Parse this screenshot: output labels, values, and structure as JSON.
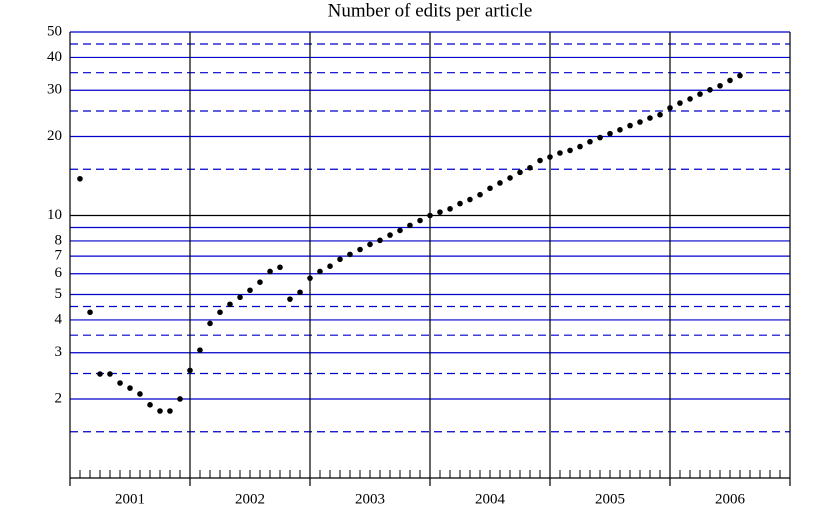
{
  "chart_data": {
    "type": "scatter",
    "title": "Number of edits per article",
    "x": [
      2001.083,
      2001.167,
      2001.25,
      2001.333,
      2001.417,
      2001.5,
      2001.583,
      2001.667,
      2001.75,
      2001.833,
      2001.917,
      2002,
      2002.083,
      2002.167,
      2002.25,
      2002.333,
      2002.417,
      2002.5,
      2002.583,
      2002.667,
      2002.75,
      2002.833,
      2002.917,
      2003,
      2003.083,
      2003.167,
      2003.25,
      2003.333,
      2003.417,
      2003.5,
      2003.583,
      2003.667,
      2003.75,
      2003.833,
      2003.917,
      2004,
      2004.083,
      2004.167,
      2004.25,
      2004.333,
      2004.417,
      2004.5,
      2004.583,
      2004.667,
      2004.75,
      2004.833,
      2004.917,
      2005,
      2005.083,
      2005.167,
      2005.25,
      2005.333,
      2005.417,
      2005.5,
      2005.583,
      2005.667,
      2005.75,
      2005.833,
      2005.917,
      2006,
      2006.083,
      2006.167,
      2006.25,
      2006.333,
      2006.417,
      2006.5,
      2006.583
    ],
    "values": [
      13.8,
      4.28,
      2.49,
      2.49,
      2.3,
      2.2,
      2.09,
      1.9,
      1.8,
      1.8,
      2.0,
      2.57,
      3.07,
      3.88,
      4.28,
      4.59,
      4.88,
      5.19,
      5.57,
      6.12,
      6.35,
      4.8,
      5.1,
      5.77,
      6.12,
      6.41,
      6.81,
      7.11,
      7.42,
      7.76,
      8.04,
      8.42,
      8.77,
      9.17,
      9.57,
      10.0,
      10.3,
      10.6,
      11.1,
      11.5,
      12.0,
      12.7,
      13.3,
      13.9,
      14.6,
      15.2,
      16.2,
      16.7,
      17.3,
      17.7,
      18.3,
      19.1,
      19.8,
      20.5,
      21.2,
      22.0,
      22.7,
      23.5,
      24.2,
      25.7,
      26.8,
      27.8,
      29.0,
      30.1,
      31.2,
      32.7,
      34.1
    ],
    "color": "#000000",
    "xlim": [
      2001,
      2007
    ],
    "xticks": [
      {
        "value": 2001.5,
        "label": "2001"
      },
      {
        "value": 2002.5,
        "label": "2002"
      },
      {
        "value": 2003.5,
        "label": "2003"
      },
      {
        "value": 2004.5,
        "label": "2004"
      },
      {
        "value": 2005.5,
        "label": "2005"
      },
      {
        "value": 2006.5,
        "label": "2006"
      }
    ],
    "xgrid": [
      2002,
      2003,
      2004,
      2005,
      2006
    ],
    "ylim": [
      1,
      50
    ],
    "log_y": true,
    "yticks": [
      2,
      3,
      4,
      5,
      6,
      7,
      8,
      10,
      20,
      30,
      40,
      50
    ],
    "yminor": [
      9
    ],
    "ydashed": [
      1.5,
      2.5,
      3.5,
      4.5,
      15,
      25,
      35,
      45
    ],
    "grid_color": "#0000cc"
  }
}
